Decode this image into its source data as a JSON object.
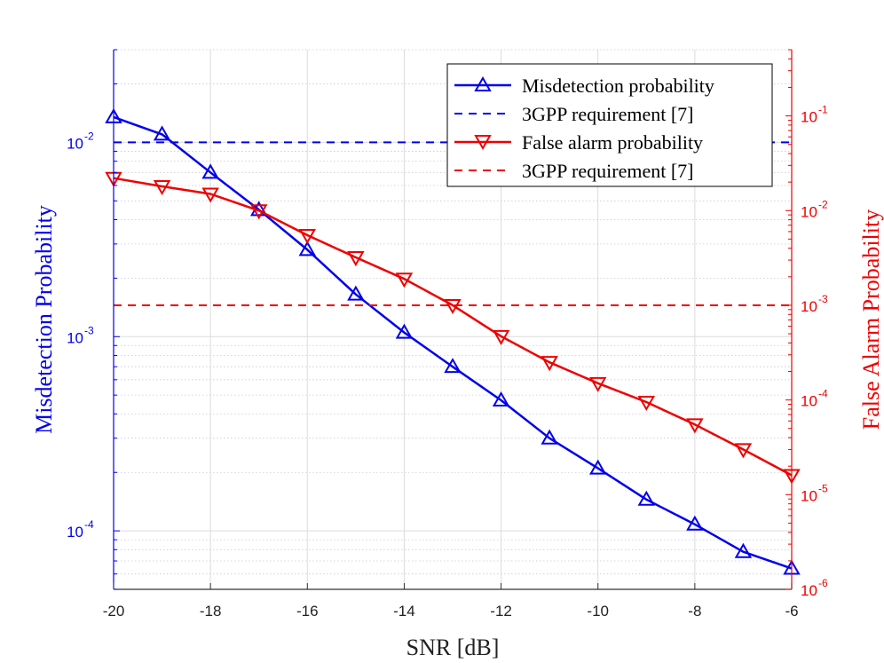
{
  "chart_data": {
    "type": "line",
    "title": "",
    "xlabel": "SNR [dB]",
    "ylabel_left": "Misdetection Probability",
    "ylabel_right": "False Alarm Probability",
    "xlim": [
      -20,
      -6
    ],
    "x_ticks": [
      -20,
      -18,
      -16,
      -14,
      -12,
      -10,
      -8,
      -6
    ],
    "x_tick_labels": [
      "-20",
      "-18",
      "-16",
      "-14",
      "-12",
      "-10",
      "-8",
      "-6"
    ],
    "yleft_scale": "log",
    "yleft_lim": [
      5e-05,
      0.03
    ],
    "yleft_ticks": [
      {
        "value": 0.01,
        "base": "10",
        "exp": "-2"
      },
      {
        "value": 0.001,
        "base": "10",
        "exp": "-3"
      },
      {
        "value": 0.0001,
        "base": "10",
        "exp": "-4"
      }
    ],
    "yright_scale": "log",
    "yright_lim": [
      1e-06,
      0.5
    ],
    "yright_ticks": [
      {
        "value": 0.1,
        "base": "10",
        "exp": "-1"
      },
      {
        "value": 0.01,
        "base": "10",
        "exp": "-2"
      },
      {
        "value": 0.001,
        "base": "10",
        "exp": "-3"
      },
      {
        "value": 0.0001,
        "base": "10",
        "exp": "-4"
      },
      {
        "value": 1e-05,
        "base": "10",
        "exp": "-5"
      },
      {
        "value": 1e-06,
        "base": "10",
        "exp": "-6"
      }
    ],
    "grid": true,
    "legend_position": "top-right",
    "left_color": "#0000ee",
    "right_color": "#ee0000",
    "x": [
      -20,
      -19,
      -18,
      -17,
      -16,
      -15,
      -14,
      -13,
      -12,
      -11,
      -10,
      -9,
      -8,
      -7,
      -6
    ],
    "series": [
      {
        "name": "Misdetection probability",
        "axis": "left",
        "style": "solid",
        "marker": "triangle-up",
        "color": "#0000ee",
        "values": [
          0.0135,
          0.011,
          0.007,
          0.0045,
          0.0028,
          0.00165,
          0.00105,
          0.0007,
          0.00047,
          0.0003,
          0.00021,
          0.000145,
          0.000108,
          7.8e-05,
          6.4e-05
        ]
      },
      {
        "name": "3GPP requirement [7]",
        "axis": "left",
        "style": "dashed",
        "marker": "none",
        "color": "#0000ee",
        "constant": 0.01
      },
      {
        "name": "False alarm probability",
        "axis": "right",
        "style": "solid",
        "marker": "triangle-down",
        "color": "#ee0000",
        "values": [
          0.022,
          0.018,
          0.015,
          0.01,
          0.0055,
          0.0032,
          0.0019,
          0.001,
          0.00047,
          0.00025,
          0.00015,
          9.5e-05,
          5.5e-05,
          3e-05,
          1.6e-05
        ]
      },
      {
        "name": "3GPP requirement [7]",
        "axis": "right",
        "style": "dashed",
        "marker": "none",
        "color": "#ee0000",
        "constant": 0.001
      }
    ]
  }
}
